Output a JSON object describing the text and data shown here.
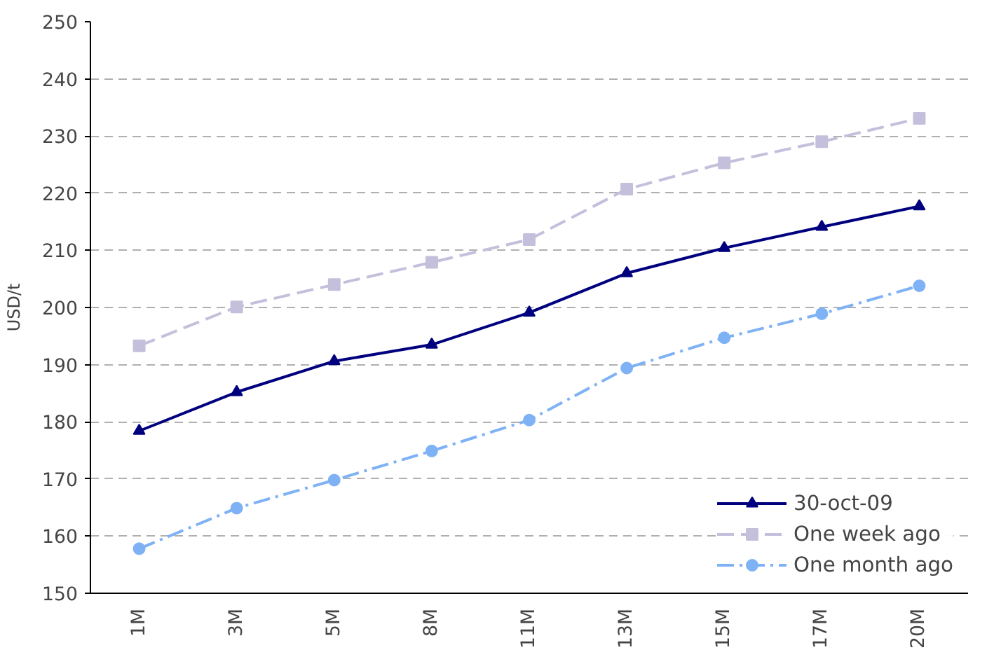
{
  "chart_data": {
    "type": "line",
    "ylabel": "USD/t",
    "categories": [
      "1M",
      "3M",
      "5M",
      "8M",
      "11M",
      "13M",
      "15M",
      "17M",
      "20M"
    ],
    "series": [
      {
        "name": "30-oct-09",
        "color": "#00007f",
        "marker": "triangle",
        "line_style": "solid",
        "values": [
          178.4,
          185.2,
          190.6,
          193.5,
          199.1,
          206.0,
          210.4,
          214.1,
          217.7
        ]
      },
      {
        "name": "One week ago",
        "color": "#c4c0dc",
        "marker": "square",
        "line_style": "dashed",
        "values": [
          193.3,
          200.1,
          204.0,
          207.9,
          211.9,
          220.7,
          225.3,
          229.0,
          233.1
        ]
      },
      {
        "name": "One month ago",
        "color": "#7fb2f5",
        "marker": "circle",
        "line_style": "dashdot",
        "values": [
          157.8,
          164.9,
          169.8,
          174.9,
          180.3,
          189.4,
          194.7,
          198.9,
          203.8
        ]
      }
    ],
    "ylim": [
      150,
      250
    ],
    "yticks": [
      150,
      160,
      170,
      180,
      190,
      200,
      210,
      220,
      230,
      240,
      250
    ],
    "grid": "y",
    "legend": "bottom right"
  }
}
